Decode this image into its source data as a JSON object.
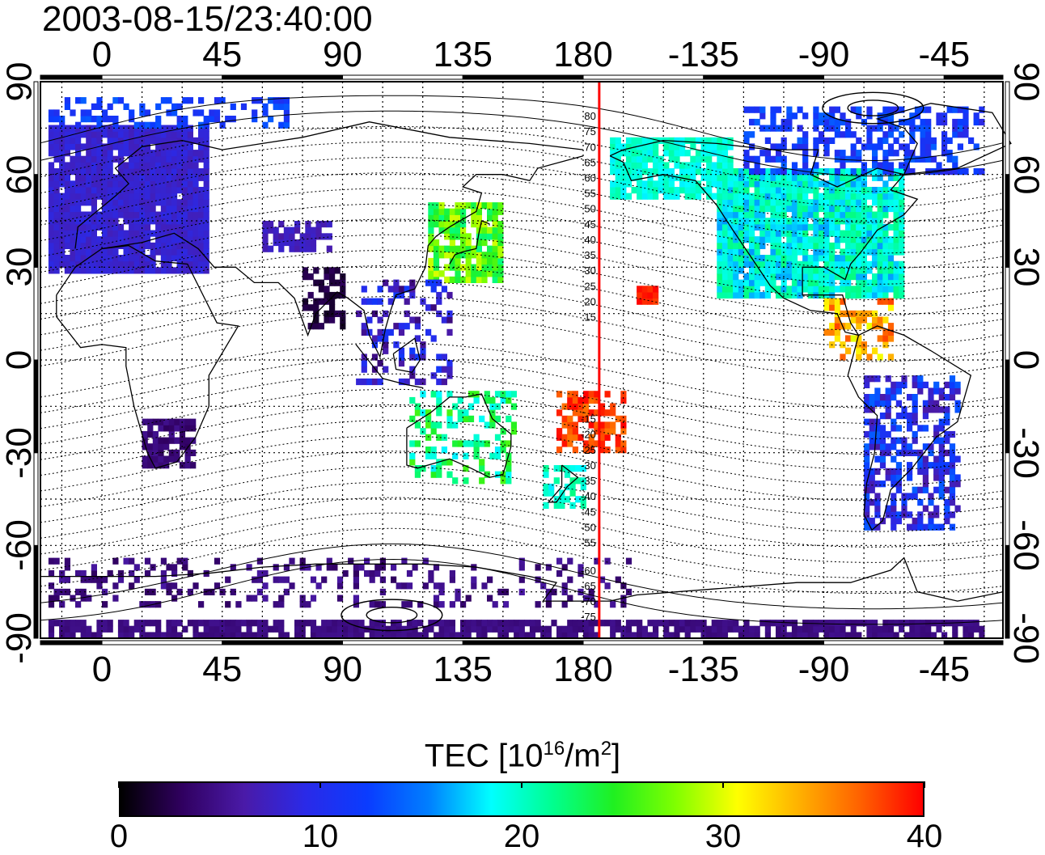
{
  "timestamp": "2003-08-15/23:40:00",
  "map": {
    "top_lon_ticks": [
      {
        "lon": 0,
        "label": "0"
      },
      {
        "lon": 45,
        "label": "45"
      },
      {
        "lon": 90,
        "label": "90"
      },
      {
        "lon": 135,
        "label": "135"
      },
      {
        "lon": 180,
        "label": "180"
      },
      {
        "lon": 225,
        "label": "-135"
      },
      {
        "lon": 270,
        "label": "-90"
      },
      {
        "lon": 315,
        "label": "-45"
      }
    ],
    "bottom_lon_ticks": [
      {
        "lon": 0,
        "label": "0"
      },
      {
        "lon": 45,
        "label": "45"
      },
      {
        "lon": 90,
        "label": "90"
      },
      {
        "lon": 135,
        "label": "135"
      },
      {
        "lon": 180,
        "label": "180"
      },
      {
        "lon": 225,
        "label": "-135"
      },
      {
        "lon": 270,
        "label": "-90"
      },
      {
        "lon": 315,
        "label": "-45"
      }
    ],
    "lat_ticks": [
      {
        "lat": 90,
        "label": "90"
      },
      {
        "lat": 60,
        "label": "60"
      },
      {
        "lat": 30,
        "label": "30"
      },
      {
        "lat": 0,
        "label": "0"
      },
      {
        "lat": -30,
        "label": "-30"
      },
      {
        "lat": -60,
        "label": "-60"
      },
      {
        "lat": -90,
        "label": "-90"
      }
    ],
    "lon_range": [
      -23,
      337
    ],
    "lat_range": [
      -90,
      90
    ],
    "grid_lon_step": 15,
    "grid_lat_step": 15,
    "meridian_marker_lon": 186,
    "meridian_marker_color": "#ff0000",
    "contour_labels": [
      "80",
      "75",
      "70",
      "65",
      "60",
      "55",
      "50",
      "45",
      "40",
      "35",
      "30",
      "25",
      "20",
      "15",
      "-15",
      "-20",
      "-25",
      "-30",
      "-35",
      "-40",
      "-45",
      "-50",
      "-55",
      "-60",
      "-65",
      "-70",
      "-75"
    ],
    "tec_regions": [
      {
        "name": "Europe",
        "lon": [
          -20,
          40
        ],
        "lat": [
          28,
          75
        ],
        "tec": [
          7,
          9
        ],
        "density": 0.95
      },
      {
        "name": "North America",
        "lon": [
          230,
          300
        ],
        "lat": [
          20,
          62
        ],
        "tec": [
          16,
          22
        ],
        "density": 0.92
      },
      {
        "name": "Alaska",
        "lon": [
          190,
          235
        ],
        "lat": [
          52,
          72
        ],
        "tec": [
          18,
          21
        ],
        "density": 0.85
      },
      {
        "name": "Canada north",
        "lon": [
          240,
          330
        ],
        "lat": [
          60,
          82
        ],
        "tec": [
          9,
          14
        ],
        "density": 0.5
      },
      {
        "name": "Japan/Korea",
        "lon": [
          122,
          150
        ],
        "lat": [
          25,
          50
        ],
        "tec": [
          22,
          30
        ],
        "density": 0.8
      },
      {
        "name": "Hawaii",
        "lon": [
          200,
          208
        ],
        "lat": [
          18,
          24
        ],
        "tec": [
          38,
          40
        ],
        "density": 0.9
      },
      {
        "name": "Pacific islands",
        "lon": [
          170,
          195
        ],
        "lat": [
          -30,
          -10
        ],
        "tec": [
          36,
          40
        ],
        "density": 0.6
      },
      {
        "name": "SE Asia",
        "lon": [
          95,
          130
        ],
        "lat": [
          -8,
          25
        ],
        "tec": [
          4,
          12
        ],
        "density": 0.35
      },
      {
        "name": "Australia",
        "lon": [
          115,
          155
        ],
        "lat": [
          -40,
          -10
        ],
        "tec": [
          18,
          26
        ],
        "density": 0.35
      },
      {
        "name": "New Zealand",
        "lon": [
          165,
          180
        ],
        "lat": [
          -48,
          -35
        ],
        "tec": [
          18,
          22
        ],
        "density": 0.6
      },
      {
        "name": "South America",
        "lon": [
          285,
          320
        ],
        "lat": [
          -55,
          -5
        ],
        "tec": [
          6,
          14
        ],
        "density": 0.55
      },
      {
        "name": "Southern Africa",
        "lon": [
          15,
          35
        ],
        "lat": [
          -35,
          -20
        ],
        "tec": [
          3,
          5
        ],
        "density": 0.7
      },
      {
        "name": "Central Asia",
        "lon": [
          60,
          85
        ],
        "lat": [
          35,
          45
        ],
        "tec": [
          6,
          8
        ],
        "density": 0.7
      },
      {
        "name": "India",
        "lon": [
          75,
          90
        ],
        "lat": [
          10,
          30
        ],
        "tec": [
          1,
          3
        ],
        "density": 0.55
      },
      {
        "name": "Antarctica ring",
        "lon": [
          -20,
          200
        ],
        "lat": [
          -80,
          -65
        ],
        "tec": [
          3,
          6
        ],
        "density": 0.25
      },
      {
        "name": "South pole belt",
        "lon": [
          -20,
          330
        ],
        "lat": [
          -90,
          -85
        ],
        "tec": [
          4,
          5
        ],
        "density": 0.8
      },
      {
        "name": "Central America",
        "lon": [
          270,
          295
        ],
        "lat": [
          0,
          20
        ],
        "tec": [
          30,
          38
        ],
        "density": 0.45
      },
      {
        "name": "Arctic",
        "lon": [
          -20,
          70
        ],
        "lat": [
          75,
          85
        ],
        "tec": [
          10,
          14
        ],
        "density": 0.45
      }
    ]
  },
  "colorbar": {
    "title_prefix": "TEC  [10",
    "title_sup1": "16",
    "title_mid": "/m",
    "title_sup2": "2",
    "title_suffix": "]",
    "min": 0,
    "max": 40,
    "tick_values": [
      0,
      10,
      20,
      30,
      40
    ],
    "tick_labels": [
      "0",
      "10",
      "20",
      "30",
      "40"
    ],
    "colormap": [
      "#000000",
      "#300060",
      "#4a1aa8",
      "#2a2ae8",
      "#0a3cff",
      "#0080ff",
      "#00ffff",
      "#00ff90",
      "#20f020",
      "#80ff00",
      "#ffff00",
      "#ffb000",
      "#ff6000",
      "#ff0000"
    ]
  }
}
